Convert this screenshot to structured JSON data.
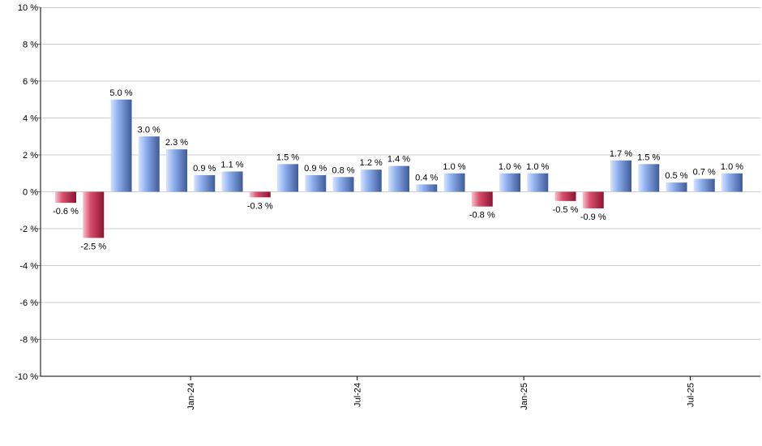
{
  "chart_data": {
    "type": "bar",
    "title": "",
    "xlabel": "",
    "ylabel": "",
    "ylim": [
      -10,
      10
    ],
    "y_ticks": [
      10,
      8,
      6,
      4,
      2,
      0,
      -2,
      -4,
      -6,
      -8,
      -10
    ],
    "y_tick_labels": [
      "10 %",
      "8 %",
      "6 %",
      "4 %",
      "2 %",
      "0 %",
      "-2 %",
      "-4 %",
      "-6 %",
      "-8 %",
      "-10 %"
    ],
    "x_tick_labels": [
      {
        "label": "Jan-24",
        "index": 4.5
      },
      {
        "label": "Jul-24",
        "index": 10.5
      },
      {
        "label": "Jan-25",
        "index": 16.5
      },
      {
        "label": "Jul-25",
        "index": 22.5
      }
    ],
    "grid": true,
    "legend": "none",
    "colors": {
      "positive_light": "#b8d0ff",
      "positive_dark": "#3e5a99",
      "negative_light": "#f2a0b2",
      "negative_dark": "#8c1430",
      "grid": "#cccccc",
      "axis": "#000000"
    },
    "values": [
      -0.6,
      -2.5,
      5.0,
      3.0,
      2.3,
      0.9,
      1.1,
      -0.3,
      1.5,
      0.9,
      0.8,
      1.2,
      1.4,
      0.4,
      1.0,
      -0.8,
      1.0,
      1.0,
      -0.5,
      -0.9,
      1.7,
      1.5,
      0.5,
      0.7,
      1.0
    ],
    "labels": [
      "-0.6 %",
      "-2.5 %",
      "5.0 %",
      "3.0 %",
      "2.3 %",
      "0.9 %",
      "1.1 %",
      "-0.3 %",
      "1.5 %",
      "0.9 %",
      "0.8 %",
      "1.2 %",
      "1.4 %",
      "0.4 %",
      "1.0 %",
      "-0.8 %",
      "1.0 %",
      "1.0 %",
      "-0.5 %",
      "-0.9 %",
      "1.7 %",
      "1.5 %",
      "0.5 %",
      "0.7 %",
      "1.0 %"
    ]
  }
}
